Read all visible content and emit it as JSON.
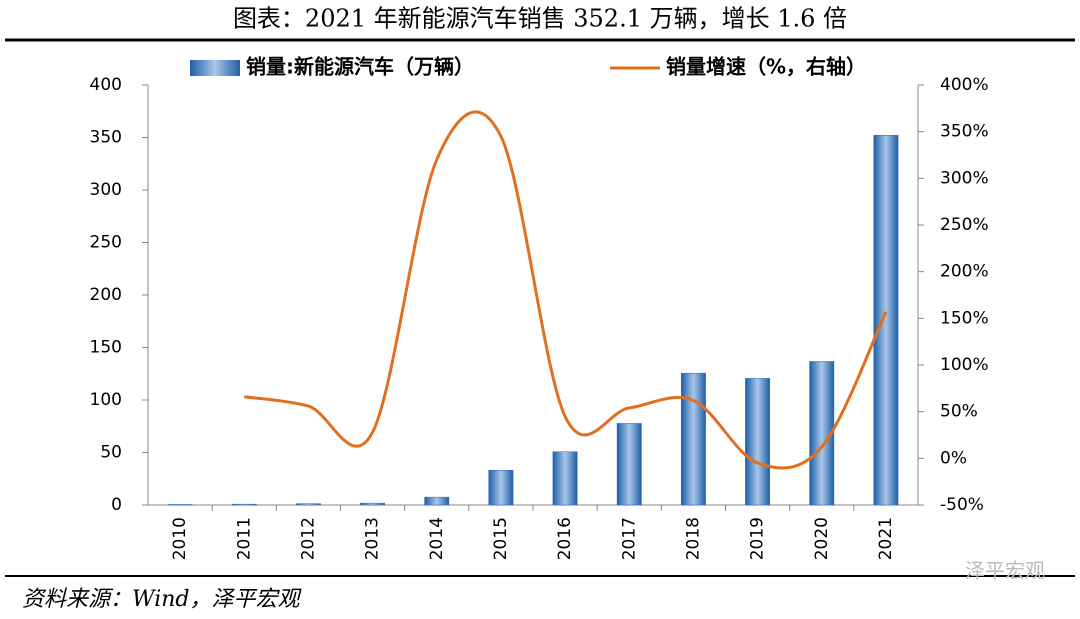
{
  "chart_data": {
    "type": "bar-line",
    "title": "图表：2021 年新能源汽车销售 352.1 万辆，增长 1.6 倍",
    "source": "资料来源：Wind，泽平宏观",
    "watermark": "泽平宏观",
    "categories": [
      "2010",
      "2011",
      "2012",
      "2013",
      "2014",
      "2015",
      "2016",
      "2017",
      "2018",
      "2019",
      "2020",
      "2021"
    ],
    "series": [
      {
        "name": "销量:新能源汽车（万辆）",
        "type": "bar",
        "color": "#2e6db4",
        "values": [
          0.5,
          0.8,
          1.3,
          1.8,
          7.5,
          33.1,
          50.7,
          77.7,
          125.6,
          120.6,
          136.7,
          352.1
        ]
      },
      {
        "name": "销量增速（%，右轴）",
        "type": "line",
        "axis": "y2",
        "color": "#e07020",
        "values": [
          null,
          66,
          56,
          28,
          320,
          345,
          45,
          54,
          62,
          -5,
          12,
          157
        ]
      }
    ],
    "ylim": [
      0,
      400
    ],
    "yticks": [
      0,
      50,
      100,
      150,
      200,
      250,
      300,
      350,
      400
    ],
    "y2lim": [
      -50,
      400
    ],
    "y2ticks": [
      {
        "value": -50,
        "label": "-50%"
      },
      {
        "value": 0,
        "label": "0%"
      },
      {
        "value": 50,
        "label": "50%"
      },
      {
        "value": 100,
        "label": "100%"
      },
      {
        "value": 150,
        "label": "150%"
      },
      {
        "value": 200,
        "label": "200%"
      },
      {
        "value": 250,
        "label": "250%"
      },
      {
        "value": 300,
        "label": "300%"
      },
      {
        "value": 350,
        "label": "350%"
      },
      {
        "value": 400,
        "label": "400%"
      }
    ],
    "legend": "top"
  }
}
